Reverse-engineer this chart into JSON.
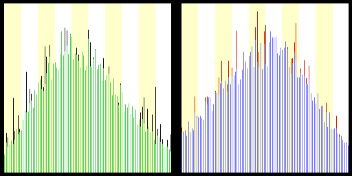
{
  "n_bars": 100,
  "bg_stripe_colors": [
    "#ffffcc",
    "#ffffff"
  ],
  "n_stripes": 10,
  "left_bar_color": "#44cc44",
  "left_spike_color": "#111111",
  "right_bar_color": "#6666ff",
  "right_spike_color": "#cc2200",
  "border_color": "#000000",
  "figsize": [
    5.12,
    2.56
  ],
  "dpi": 100,
  "female_peak": 38,
  "female_spread_l": 20,
  "female_spread_r": 32,
  "male_peak": 55,
  "male_spread_l": 35,
  "male_spread_r": 25
}
